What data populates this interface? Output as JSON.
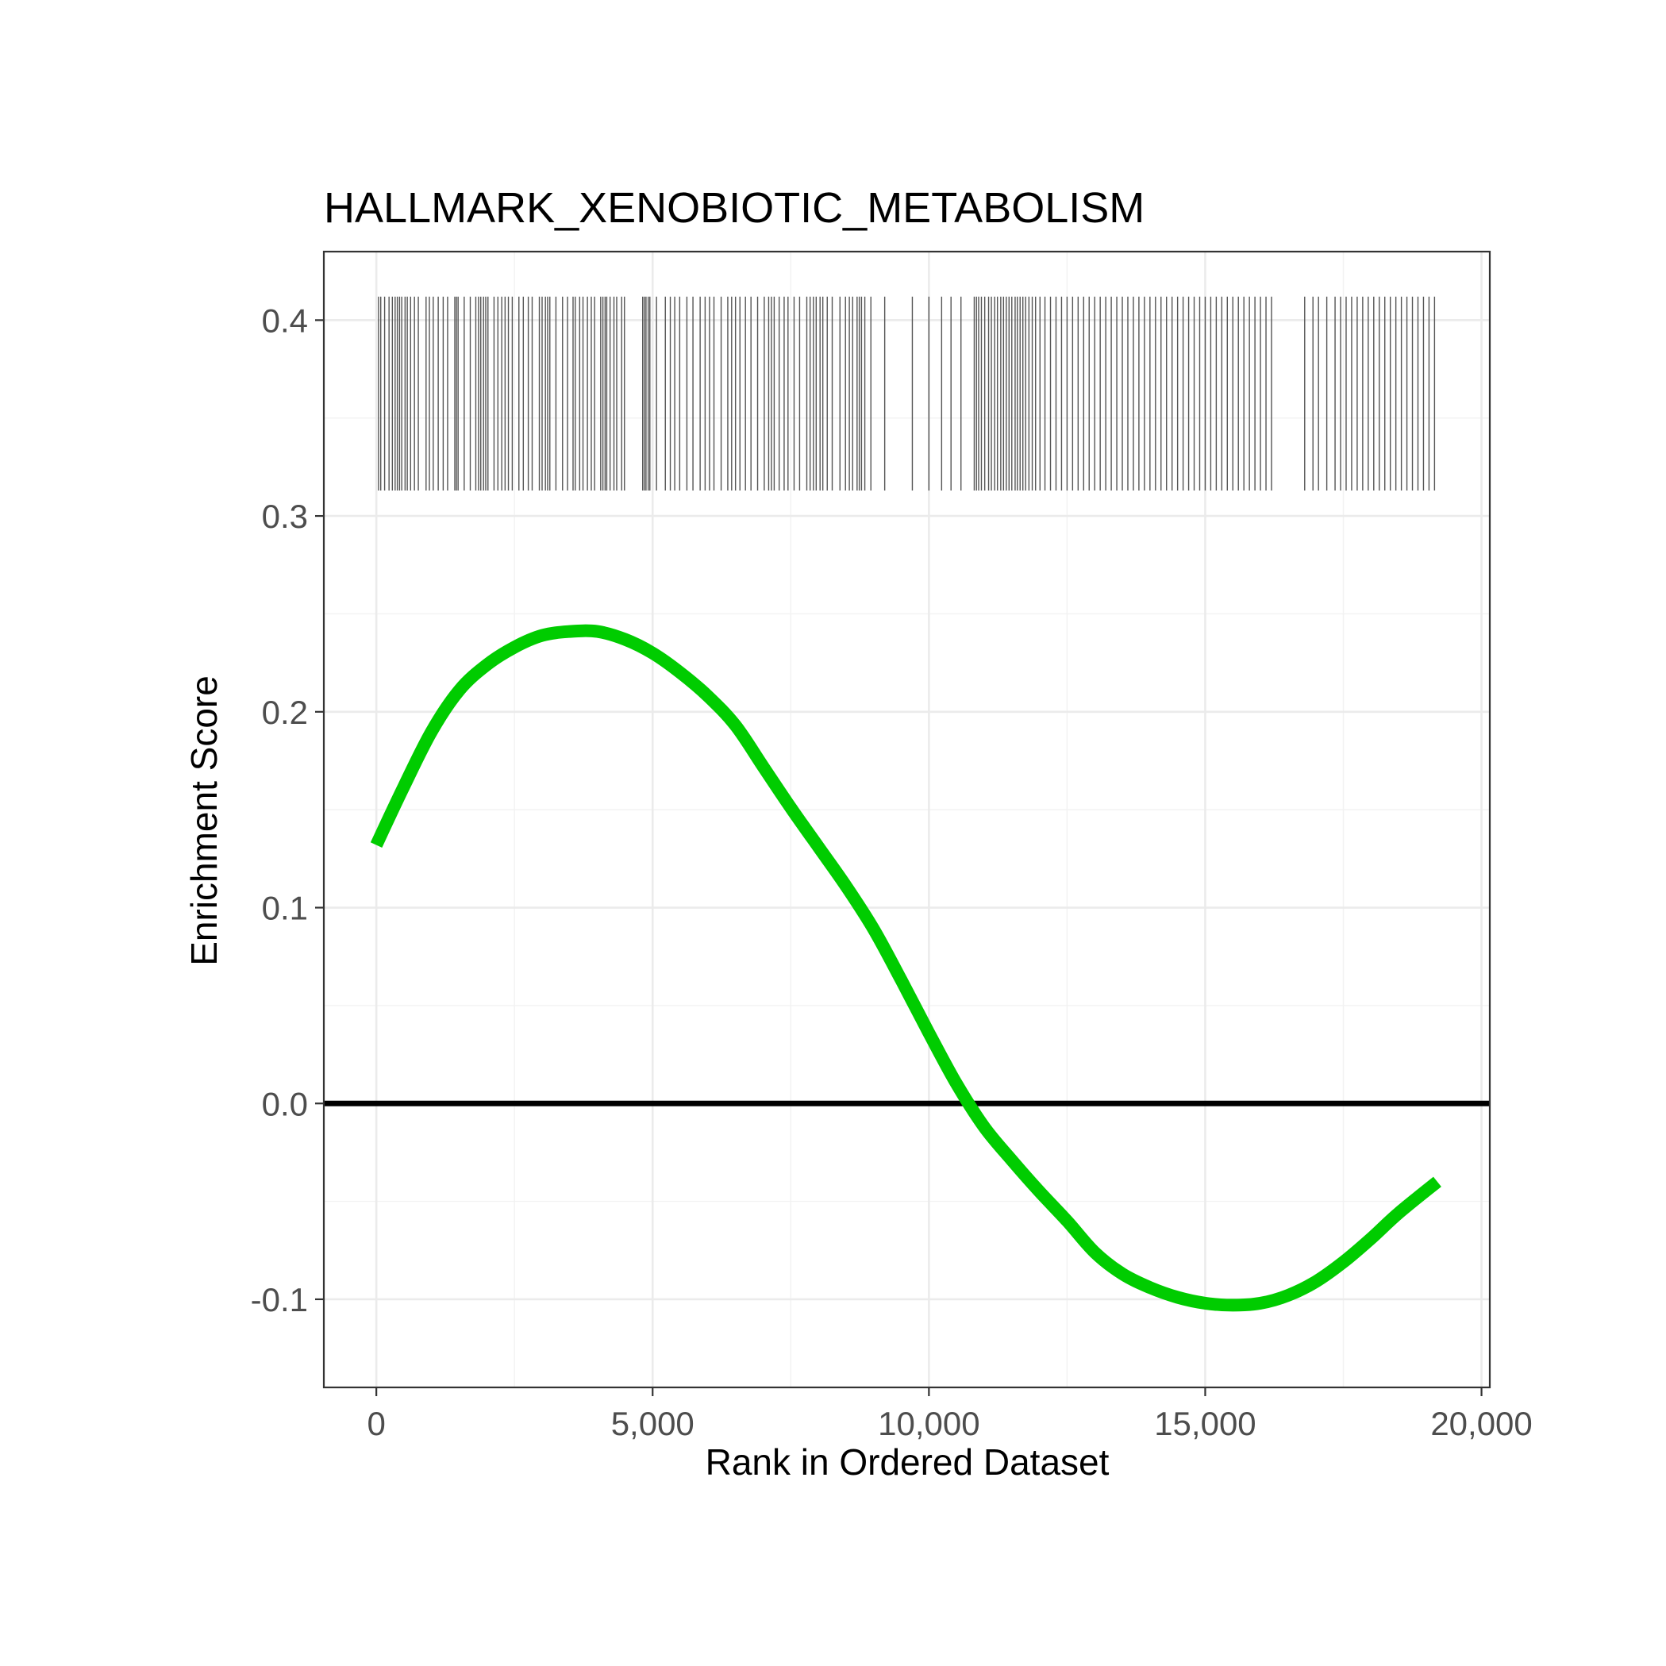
{
  "chart_data": {
    "type": "line",
    "title": "HALLMARK_XENOBIOTIC_METABOLISM",
    "xlabel": "Rank in Ordered Dataset",
    "ylabel": "Enrichment Score",
    "xlim": [
      -950,
      20150
    ],
    "ylim": [
      -0.145,
      0.435
    ],
    "x_ticks": [
      0,
      5000,
      10000,
      15000,
      20000
    ],
    "x_tick_labels": [
      "0",
      "5,000",
      "10,000",
      "15,000",
      "20,000"
    ],
    "y_ticks": [
      -0.1,
      0.0,
      0.1,
      0.2,
      0.3,
      0.4
    ],
    "y_tick_labels": [
      "-0.1",
      "0.0",
      "0.1",
      "0.2",
      "0.3",
      "0.4"
    ],
    "grid": true,
    "hline": 0,
    "colors": {
      "line": "#00cc00",
      "rug": "#555555",
      "hline": "#000000"
    },
    "series": [
      {
        "x": [
          0,
          500,
          1000,
          1500,
          2000,
          2500,
          3000,
          3500,
          4000,
          4500,
          5000,
          5500,
          6000,
          6500,
          7000,
          7500,
          8000,
          8500,
          9000,
          9500,
          10000,
          10500,
          11000,
          11500,
          12000,
          12500,
          13000,
          13500,
          14000,
          14500,
          15000,
          15500,
          16000,
          16500,
          17000,
          17500,
          18000,
          18500,
          19200
        ],
        "values": [
          0.132,
          0.162,
          0.19,
          0.211,
          0.224,
          0.233,
          0.239,
          0.241,
          0.241,
          0.237,
          0.23,
          0.22,
          0.208,
          0.193,
          0.172,
          0.151,
          0.131,
          0.111,
          0.089,
          0.063,
          0.036,
          0.01,
          -0.012,
          -0.029,
          -0.045,
          -0.06,
          -0.076,
          -0.087,
          -0.094,
          -0.099,
          -0.102,
          -0.103,
          -0.102,
          -0.098,
          -0.091,
          -0.081,
          -0.069,
          -0.056,
          -0.04
        ]
      }
    ],
    "rug": {
      "y_range": [
        0.313,
        0.412
      ],
      "positions": [
        40,
        80,
        150,
        230,
        290,
        340,
        380,
        420,
        460,
        520,
        560,
        620,
        690,
        760,
        900,
        960,
        1030,
        1120,
        1210,
        1290,
        1420,
        1450,
        1480,
        1590,
        1700,
        1800,
        1850,
        1890,
        1940,
        1980,
        2020,
        2130,
        2200,
        2270,
        2330,
        2390,
        2460,
        2580,
        2660,
        2750,
        2820,
        2950,
        3000,
        3060,
        3100,
        3140,
        3250,
        3370,
        3460,
        3560,
        3600,
        3680,
        3740,
        3820,
        3890,
        3950,
        4060,
        4100,
        4140,
        4170,
        4230,
        4300,
        4350,
        4440,
        4490,
        4820,
        4850,
        4880,
        4920,
        4950,
        5070,
        5230,
        5320,
        5400,
        5490,
        5620,
        5730,
        5860,
        5950,
        6030,
        6110,
        6240,
        6360,
        6430,
        6500,
        6580,
        6680,
        6780,
        6900,
        7020,
        7100,
        7150,
        7200,
        7290,
        7380,
        7450,
        7560,
        7660,
        7790,
        7850,
        7910,
        7960,
        8030,
        8080,
        8160,
        8250,
        8390,
        8490,
        8560,
        8620,
        8700,
        8740,
        8780,
        8840,
        8950,
        9200,
        9700,
        10000,
        10230,
        10400,
        10580,
        10820,
        10860,
        10900,
        10950,
        11010,
        11080,
        11130,
        11190,
        11240,
        11300,
        11350,
        11400,
        11450,
        11500,
        11560,
        11600,
        11650,
        11700,
        11750,
        11810,
        11870,
        11930,
        12010,
        12100,
        12200,
        12300,
        12400,
        12500,
        12600,
        12700,
        12800,
        12900,
        13000,
        13100,
        13200,
        13300,
        13400,
        13500,
        13600,
        13700,
        13800,
        13900,
        14000,
        14100,
        14200,
        14300,
        14400,
        14500,
        14600,
        14700,
        14800,
        14900,
        15000,
        15100,
        15200,
        15300,
        15400,
        15500,
        15600,
        15700,
        15800,
        15900,
        16000,
        16100,
        16200,
        16800,
        16950,
        17050,
        17200,
        17350,
        17450,
        17550,
        17650,
        17750,
        17850,
        17950,
        18050,
        18150,
        18250,
        18350,
        18450,
        18550,
        18650,
        18750,
        18850,
        18950,
        19050,
        19150
      ]
    }
  }
}
